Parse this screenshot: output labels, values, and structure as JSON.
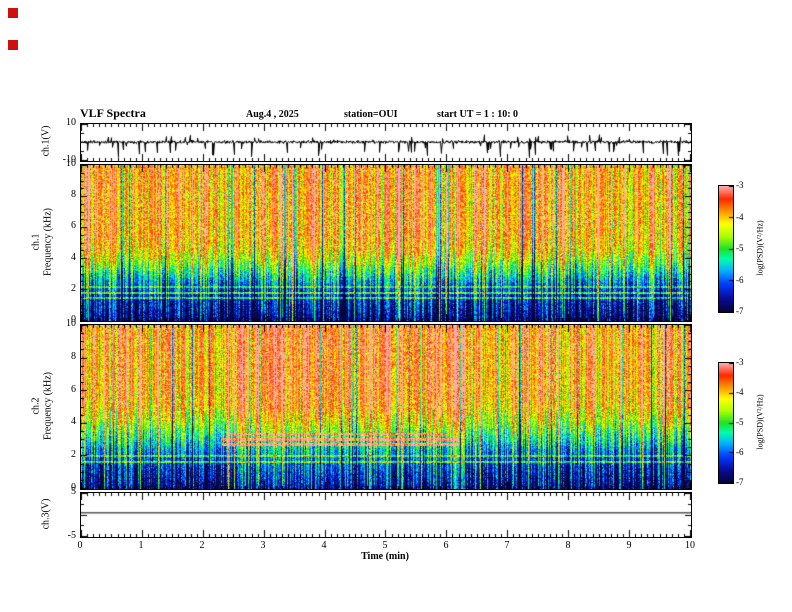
{
  "header": {
    "title": "VLF Spectra",
    "date": "Aug.4 , 2025",
    "station": "station=OUI",
    "start_ut": "start UT = 1 : 10: 0"
  },
  "x_axis": {
    "label": "Time (min)",
    "min": 0,
    "max": 10,
    "ticks": [
      0,
      1,
      2,
      3,
      4,
      5,
      6,
      7,
      8,
      9,
      10
    ]
  },
  "colorbar": {
    "label": "log(PSD)(V²/Hz)",
    "min": -7,
    "max": -3,
    "ticks": [
      -3,
      -4,
      -5,
      -6,
      -7
    ],
    "stops": [
      [
        0,
        5,
        5,
        60
      ],
      [
        0.1,
        10,
        10,
        150
      ],
      [
        0.22,
        0,
        60,
        255
      ],
      [
        0.33,
        0,
        180,
        255
      ],
      [
        0.42,
        0,
        255,
        170
      ],
      [
        0.5,
        30,
        225,
        40
      ],
      [
        0.6,
        170,
        255,
        0
      ],
      [
        0.7,
        255,
        255,
        0
      ],
      [
        0.8,
        255,
        150,
        0
      ],
      [
        0.9,
        255,
        40,
        0
      ],
      [
        1,
        255,
        170,
        170
      ]
    ]
  },
  "decorations": {
    "red_square_color": "#cc1111",
    "red_square_count": 2
  },
  "chart_data": [
    {
      "type": "line",
      "name": "ch1_waveform",
      "ylabel": "ch.1(V)",
      "ylim": [
        -10,
        10
      ],
      "yticks": [
        10,
        -10
      ],
      "description": "VLF channel 1 time series: noisy baseline near 0 V with frequent impulsive sferic spikes reaching about -8 V, a few upward to about +3 V",
      "gen": {
        "seed": 11,
        "noise": 0.8,
        "down_prob": 0.055,
        "down_amp": 6,
        "up_prob": 0.02,
        "up_amp": 3
      }
    },
    {
      "type": "heatmap",
      "name": "ch1_spectrogram",
      "ylabel_line1": "ch.1",
      "ylabel_line2": "Frequency (kHz)",
      "ylim": [
        0,
        10
      ],
      "yticks": [
        10,
        8,
        6,
        4,
        2,
        0
      ],
      "zlim": [
        -7,
        -3
      ],
      "description": "0-10 kHz spectrogram: high PSD (red, about -4) above ~4.5 kHz with dense vertical sferic striations, green/yellow 2.5-4.5 kHz, blue background below 2.5 kHz with narrow cyan horizontal lines near 1.5-2.2 kHz, nearly black below 0.5 kHz",
      "gen": {
        "seed": 23,
        "col_amp": 0.85,
        "strong_prob": 0.1,
        "strong_boost": 1.0,
        "quiet_prob": 0.1,
        "quiet_drop": 1.25,
        "pixel_noise": 0.55,
        "profile": [
          [
            0,
            -6.95
          ],
          [
            0.3,
            -6.8
          ],
          [
            0.8,
            -6.55
          ],
          [
            1.6,
            -6.35
          ],
          [
            2.2,
            -6.0
          ],
          [
            3.0,
            -5.3
          ],
          [
            3.8,
            -4.6
          ],
          [
            4.6,
            -4.05
          ],
          [
            5.5,
            -3.85
          ],
          [
            10,
            -3.75
          ]
        ],
        "hbands": [
          [
            1.45,
            0.06,
            1.2
          ],
          [
            1.8,
            0.06,
            1.4
          ],
          [
            2.15,
            0.05,
            1.0
          ]
        ],
        "env": [],
        "segments": []
      }
    },
    {
      "type": "heatmap",
      "name": "ch2_spectrogram",
      "ylabel_line1": "ch.2",
      "ylabel_line2": "Frequency (kHz)",
      "ylim": [
        0,
        10
      ],
      "yticks": [
        10,
        8,
        6,
        4,
        2,
        0
      ],
      "zlim": [
        -7,
        -3
      ],
      "description": "0-10 kHz spectrogram similar to ch.1 but with stronger red activity between about 2.5 and 6.5 min and bright horizontal interference lines near 2.6-3.4 kHz from about 2.3 to 6.2 min",
      "gen": {
        "seed": 47,
        "col_amp": 0.85,
        "strong_prob": 0.1,
        "strong_boost": 1.0,
        "quiet_prob": 0.09,
        "quiet_drop": 1.2,
        "pixel_noise": 0.55,
        "profile": [
          [
            0,
            -6.9
          ],
          [
            0.3,
            -6.7
          ],
          [
            0.9,
            -6.5
          ],
          [
            1.6,
            -6.2
          ],
          [
            2.3,
            -5.8
          ],
          [
            3.2,
            -5.1
          ],
          [
            4.2,
            -4.4
          ],
          [
            5.0,
            -3.95
          ],
          [
            6.0,
            -3.8
          ],
          [
            10,
            -3.7
          ]
        ],
        "hbands": [
          [
            1.6,
            0.06,
            1.2
          ],
          [
            2.0,
            0.05,
            1.0
          ]
        ],
        "env": [
          [
            2.4,
            6.4,
            0.35
          ]
        ],
        "segments": [
          [
            2.7,
            0.08,
            2.4,
            2.3,
            6.2
          ],
          [
            3.0,
            0.07,
            2.2,
            2.3,
            6.2
          ],
          [
            3.35,
            0.07,
            2.0,
            2.4,
            6.0
          ]
        ]
      }
    },
    {
      "type": "line",
      "name": "ch3_waveform",
      "ylabel": "ch.3(V)",
      "ylim": [
        -5,
        5
      ],
      "yticks": [
        5,
        -5
      ],
      "description": "channel 3: constant flat trace near +0.5 V across the full 10 minutes",
      "gen": {
        "flat_value": 0.5
      }
    }
  ]
}
